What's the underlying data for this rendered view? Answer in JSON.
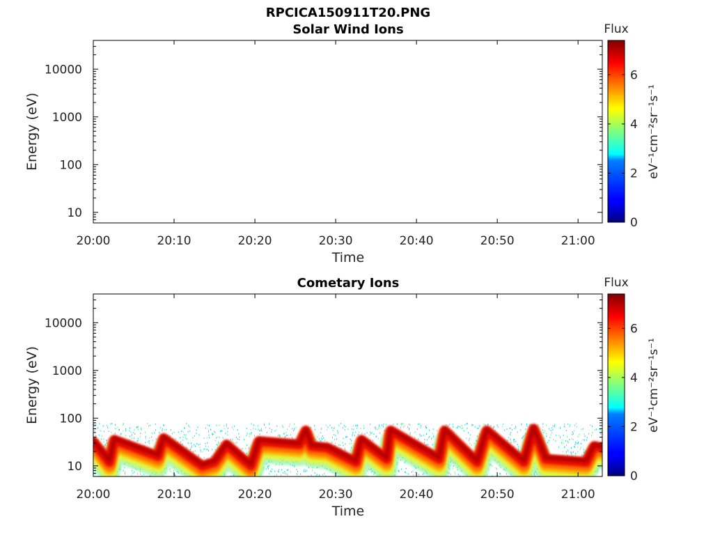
{
  "figure": {
    "title": "RPCICA150911T20.PNG"
  },
  "chart_data": [
    {
      "type": "heatmap",
      "title": "Solar Wind Ions",
      "xlabel": "Time",
      "ylabel": "Energy (eV)",
      "y_scale": "log",
      "xlim": [
        "20:00",
        "21:03"
      ],
      "ylim": [
        6,
        40000
      ],
      "x_ticks": [
        "20:00",
        "20:10",
        "20:20",
        "20:30",
        "20:40",
        "20:50",
        "21:00"
      ],
      "y_ticks": [
        "10",
        "100",
        "1000",
        "10000"
      ],
      "colorbar": {
        "title": "Flux",
        "label": "eV⁻¹cm⁻²sr⁻¹s⁻¹",
        "ticks": [
          "0",
          "2",
          "4",
          "6"
        ],
        "range": [
          0,
          7.4
        ],
        "colormap": "jet"
      },
      "data": "empty"
    },
    {
      "type": "heatmap",
      "title": "Cometary Ions",
      "xlabel": "Time",
      "ylabel": "Energy (eV)",
      "y_scale": "log",
      "xlim": [
        "20:00",
        "21:03"
      ],
      "ylim": [
        6,
        40000
      ],
      "x_ticks": [
        "20:00",
        "20:10",
        "20:20",
        "20:30",
        "20:40",
        "20:50",
        "21:00"
      ],
      "y_ticks": [
        "10",
        "100",
        "1000",
        "10000"
      ],
      "colorbar": {
        "title": "Flux",
        "label": "eV⁻¹cm⁻²sr⁻¹s⁻¹",
        "ticks": [
          "0",
          "2",
          "4",
          "6"
        ],
        "range": [
          0,
          7.4
        ],
        "colormap": "jet"
      },
      "noise_max_energy": 80,
      "ridge_peak_energy": [
        [
          "20:00",
          32
        ],
        [
          "20:02",
          12
        ],
        [
          "20:02.6",
          35
        ],
        [
          "20:08",
          16
        ],
        [
          "20:08.7",
          38
        ],
        [
          "20:13.5",
          10
        ],
        [
          "20:15",
          12
        ],
        [
          "20:16.5",
          28
        ],
        [
          "20:19.5",
          10
        ],
        [
          "20:20.5",
          33
        ],
        [
          "20:25.5",
          28
        ],
        [
          "20:26.3",
          55
        ],
        [
          "20:27",
          26
        ],
        [
          "20:29",
          24
        ],
        [
          "20:32.5",
          12
        ],
        [
          "20:33.2",
          35
        ],
        [
          "20:36.3",
          14
        ],
        [
          "20:36.8",
          55
        ],
        [
          "20:42.8",
          14
        ],
        [
          "20:43.5",
          55
        ],
        [
          "20:47.5",
          12
        ],
        [
          "20:48.7",
          55
        ],
        [
          "20:53.3",
          12
        ],
        [
          "20:54.5",
          60
        ],
        [
          "20:56",
          14
        ],
        [
          "21:01",
          12
        ],
        [
          "21:02",
          26
        ],
        [
          "21:03",
          24
        ]
      ]
    }
  ]
}
